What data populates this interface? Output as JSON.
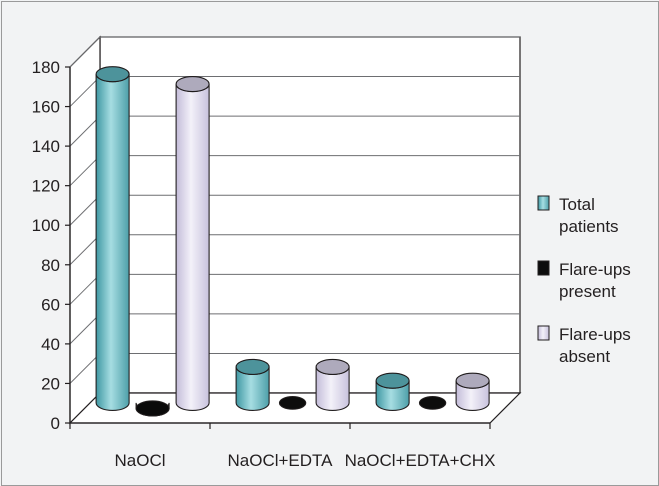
{
  "chart_data": {
    "type": "bar",
    "style": "3d-cylinder",
    "categories": [
      "NaOCl",
      "NaOCl+EDTA",
      "NaOCl+EDTA+CHX"
    ],
    "series": [
      {
        "name": "Total patients",
        "legend_lines": [
          "Total",
          "patients"
        ],
        "values": [
          170,
          22,
          15
        ],
        "color": "#5fb4bd"
      },
      {
        "name": "Flare-ups present",
        "legend_lines": [
          "Flare-ups",
          "present"
        ],
        "values": [
          1,
          0,
          0
        ],
        "color": "#0d0d0d"
      },
      {
        "name": "Flare-ups absent",
        "legend_lines": [
          "Flare-ups",
          "absent"
        ],
        "values": [
          165,
          22,
          15
        ],
        "color": "#d5d0e6"
      }
    ],
    "yticks": [
      0,
      20,
      40,
      60,
      80,
      100,
      120,
      140,
      160,
      180
    ],
    "ylim": [
      0,
      180
    ],
    "grid": true,
    "legend_position": "right"
  }
}
